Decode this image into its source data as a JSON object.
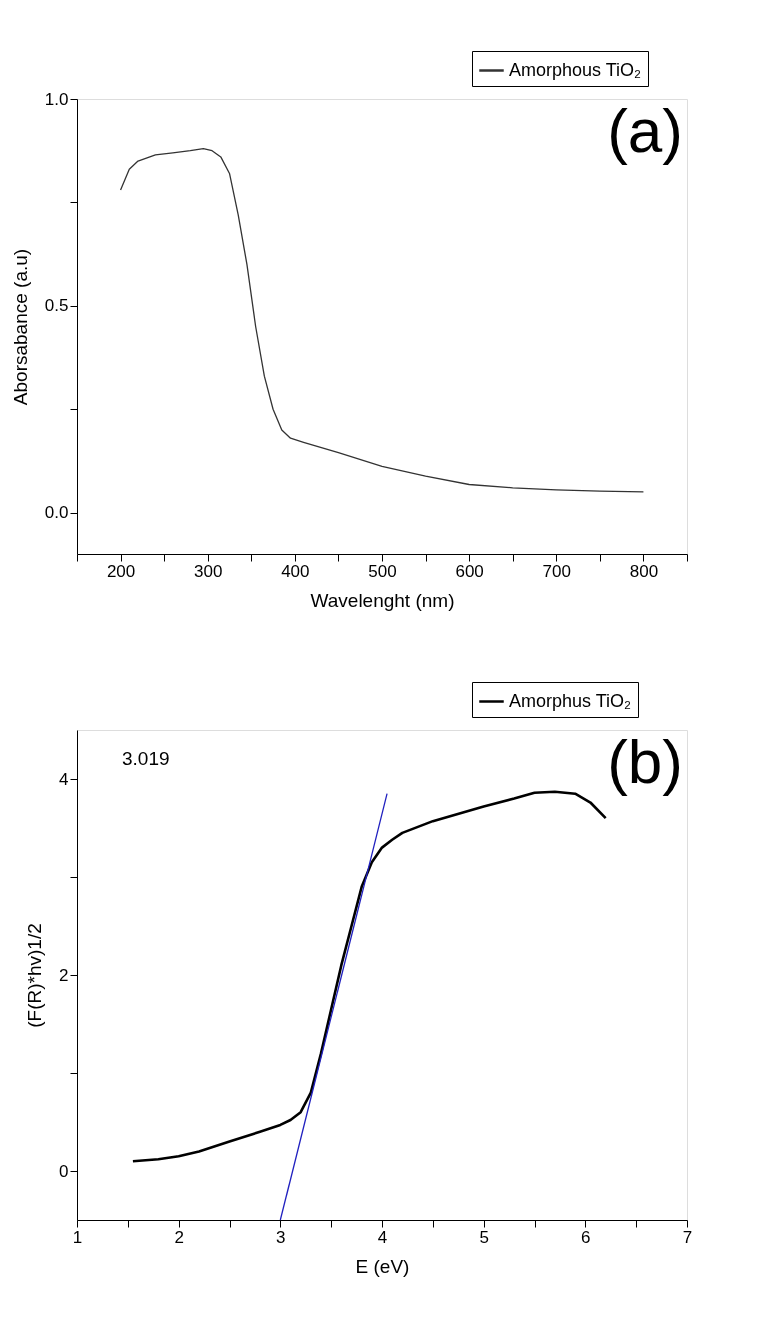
{
  "chart_data": [
    {
      "type": "line",
      "xlabel": "Wavelenght (nm)",
      "ylabel": "Aborsabance (a.u)",
      "legend": "top right",
      "marker": "none",
      "line_style": "solid",
      "grid": false,
      "annotations": [
        "(a)"
      ],
      "xlim": [
        150,
        850
      ],
      "xticks": [
        {
          "value": 150,
          "label": null
        },
        200,
        {
          "value": 250,
          "label": null
        },
        300,
        {
          "value": 350,
          "label": null
        },
        400,
        {
          "value": 450,
          "label": null
        },
        500,
        {
          "value": 550,
          "label": null
        },
        600,
        {
          "value": 650,
          "label": null
        },
        700,
        {
          "value": 750,
          "label": null
        },
        800,
        {
          "value": 850,
          "label": null
        }
      ],
      "ylim": [
        -0.1,
        1.0
      ],
      "yticks": [
        {
          "value": 0,
          "label": "0.0"
        },
        {
          "value": 0.25,
          "label": null
        },
        0.5,
        {
          "value": 0.75,
          "label": null
        },
        {
          "value": 1,
          "label": "1.0"
        }
      ],
      "series": [
        {
          "name": "Amorphous TiO₂",
          "color": "#333333",
          "x": [
            200,
            210,
            220,
            240,
            260,
            280,
            295,
            305,
            315,
            325,
            335,
            345,
            355,
            365,
            375,
            385,
            395,
            410,
            450,
            500,
            550,
            600,
            650,
            700,
            750,
            800
          ],
          "values": [
            0.78,
            0.83,
            0.85,
            0.865,
            0.87,
            0.875,
            0.88,
            0.875,
            0.86,
            0.82,
            0.72,
            0.6,
            0.45,
            0.33,
            0.25,
            0.2,
            0.18,
            0.17,
            0.145,
            0.112,
            0.088,
            0.068,
            0.06,
            0.055,
            0.052,
            0.05
          ]
        }
      ]
    },
    {
      "type": "line",
      "xlabel": "E (eV)",
      "ylabel": "(F(R)*hv)1/2",
      "legend": "top right",
      "marker": "none",
      "line_style": "solid",
      "grid": false,
      "annotations": [
        "3.019",
        "(b)"
      ],
      "xlim": [
        1,
        7
      ],
      "xticks": [
        1,
        {
          "value": 1.5,
          "label": null
        },
        2,
        {
          "value": 2.5,
          "label": null
        },
        3,
        {
          "value": 3.5,
          "label": null
        },
        4,
        {
          "value": 4.5,
          "label": null
        },
        5,
        {
          "value": 5.5,
          "label": null
        },
        6,
        {
          "value": 6.5,
          "label": null
        },
        7
      ],
      "ylim": [
        -0.5,
        4.5
      ],
      "yticks": [
        0,
        {
          "value": 1,
          "label": null
        },
        2,
        {
          "value": 3,
          "label": null
        },
        4
      ],
      "series": [
        {
          "name": "Amorphus TiO₂",
          "color": "#000000",
          "x": [
            1.55,
            1.8,
            2.0,
            2.2,
            2.5,
            2.8,
            3.0,
            3.1,
            3.2,
            3.3,
            3.4,
            3.5,
            3.6,
            3.7,
            3.8,
            3.9,
            4.0,
            4.1,
            4.2,
            4.5,
            5.0,
            5.3,
            5.5,
            5.7,
            5.9,
            6.05,
            6.2
          ],
          "values": [
            0.1,
            0.12,
            0.15,
            0.2,
            0.3,
            0.4,
            0.47,
            0.52,
            0.6,
            0.8,
            1.2,
            1.65,
            2.1,
            2.5,
            2.9,
            3.15,
            3.3,
            3.38,
            3.45,
            3.57,
            3.72,
            3.8,
            3.86,
            3.87,
            3.85,
            3.76,
            3.6
          ]
        },
        {
          "type": "line",
          "color": "#2020c0",
          "x": [
            3.0,
            4.05
          ],
          "values": [
            -0.5,
            3.85
          ]
        }
      ]
    }
  ]
}
